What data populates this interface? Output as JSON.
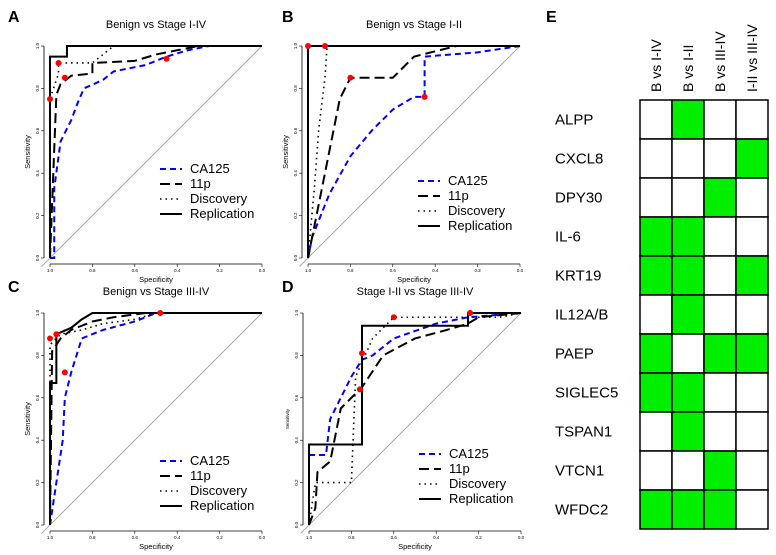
{
  "chart_data": [
    {
      "type": "line",
      "panel": "A",
      "title": "Benign vs Stage I-IV",
      "xlabel": "Specificity",
      "ylabel": "Sensitivity",
      "xlim": [
        1.0,
        0.0
      ],
      "ylim": [
        0.0,
        1.0
      ],
      "ticks": [
        "1.0",
        "0.8",
        "0.6",
        "0.4",
        "0.2",
        "0.0"
      ],
      "series": [
        {
          "name": "CA125",
          "style": "dashed",
          "color": "#0000ff",
          "points": [
            [
              1,
              0
            ],
            [
              0.98,
              0
            ],
            [
              0.98,
              0.33
            ],
            [
              0.95,
              0.55
            ],
            [
              0.9,
              0.65
            ],
            [
              0.87,
              0.73
            ],
            [
              0.84,
              0.8
            ],
            [
              0.75,
              0.84
            ],
            [
              0.7,
              0.88
            ],
            [
              0.55,
              0.91
            ],
            [
              0.45,
              0.95
            ],
            [
              0.35,
              0.98
            ],
            [
              0.25,
              1
            ],
            [
              0,
              1
            ]
          ]
        },
        {
          "name": "11p",
          "style": "longdash",
          "color": "#000000",
          "points": [
            [
              1,
              0
            ],
            [
              0.97,
              0.77
            ],
            [
              0.95,
              0.82
            ],
            [
              0.9,
              0.86
            ],
            [
              0.8,
              0.87
            ],
            [
              0.8,
              0.92
            ],
            [
              0.6,
              0.93
            ],
            [
              0.5,
              0.96
            ],
            [
              0.4,
              0.98
            ],
            [
              0.3,
              1
            ],
            [
              0,
              1
            ]
          ]
        },
        {
          "name": "Discovery",
          "style": "dotted",
          "color": "#000000",
          "points": [
            [
              1,
              0
            ],
            [
              1,
              0.75
            ],
            [
              0.96,
              0.87
            ],
            [
              0.96,
              0.92
            ],
            [
              0.8,
              0.92
            ],
            [
              0.7,
              1
            ],
            [
              0,
              1
            ]
          ]
        },
        {
          "name": "Replication",
          "style": "solid",
          "color": "#000000",
          "points": [
            [
              1,
              0
            ],
            [
              1,
              0.95
            ],
            [
              0.92,
              0.95
            ],
            [
              0.92,
              1
            ],
            [
              0,
              1
            ]
          ]
        }
      ],
      "highlight_points": [
        [
          1,
          0.75
        ],
        [
          0.96,
          0.92
        ],
        [
          0.93,
          0.85
        ],
        [
          0.45,
          0.94
        ]
      ]
    },
    {
      "type": "line",
      "panel": "B",
      "title": "Benign vs Stage I-II",
      "xlabel": "Specificity",
      "ylabel": "Sensitivity",
      "xlim": [
        1.0,
        0.0
      ],
      "ylim": [
        0.0,
        1.0
      ],
      "ticks": [
        "1.0",
        "0.8",
        "0.6",
        "0.4",
        "0.2",
        "0.0"
      ],
      "series": [
        {
          "name": "CA125",
          "style": "dashed",
          "color": "#0000ff",
          "points": [
            [
              1,
              0
            ],
            [
              0.98,
              0.1
            ],
            [
              0.9,
              0.3
            ],
            [
              0.8,
              0.48
            ],
            [
              0.7,
              0.6
            ],
            [
              0.6,
              0.7
            ],
            [
              0.5,
              0.76
            ],
            [
              0.45,
              0.76
            ],
            [
              0.45,
              0.95
            ],
            [
              0.2,
              0.97
            ],
            [
              0,
              1
            ]
          ]
        },
        {
          "name": "11p",
          "style": "longdash",
          "color": "#000000",
          "points": [
            [
              1,
              0
            ],
            [
              0.9,
              0.5
            ],
            [
              0.85,
              0.75
            ],
            [
              0.8,
              0.85
            ],
            [
              0.6,
              0.85
            ],
            [
              0.5,
              0.95
            ],
            [
              0.3,
              1
            ],
            [
              0,
              1
            ]
          ]
        },
        {
          "name": "Discovery",
          "style": "dotted",
          "color": "#000000",
          "points": [
            [
              1,
              0
            ],
            [
              0.97,
              0.33
            ],
            [
              0.95,
              0.6
            ],
            [
              0.92,
              0.85
            ],
            [
              0.91,
              1
            ],
            [
              0,
              1
            ]
          ]
        },
        {
          "name": "Replication",
          "style": "solid",
          "color": "#000000",
          "points": [
            [
              1,
              0
            ],
            [
              1,
              1
            ],
            [
              0,
              1
            ]
          ]
        }
      ],
      "highlight_points": [
        [
          1,
          1
        ],
        [
          0.92,
          1
        ],
        [
          0.8,
          0.85
        ],
        [
          0.45,
          0.76
        ]
      ]
    },
    {
      "type": "line",
      "panel": "C",
      "title": "Benign vs Stage III-IV",
      "xlabel": "Specificity",
      "ylabel": "Sensitivity",
      "xlim": [
        1.0,
        0.0
      ],
      "ylim": [
        0.0,
        1.0
      ],
      "ticks": [
        "1.0",
        "0.8",
        "0.6",
        "0.4",
        "0.2",
        "0.0"
      ],
      "series": [
        {
          "name": "CA125",
          "style": "dashed",
          "color": "#0000ff",
          "points": [
            [
              1,
              0
            ],
            [
              0.94,
              0.4
            ],
            [
              0.93,
              0.6
            ],
            [
              0.9,
              0.72
            ],
            [
              0.85,
              0.88
            ],
            [
              0.75,
              0.92
            ],
            [
              0.6,
              0.96
            ],
            [
              0.5,
              1
            ],
            [
              0,
              1
            ]
          ]
        },
        {
          "name": "11p",
          "style": "longdash",
          "color": "#000000",
          "points": [
            [
              1,
              0
            ],
            [
              0.99,
              0.82
            ],
            [
              0.95,
              0.88
            ],
            [
              0.9,
              0.92
            ],
            [
              0.8,
              0.96
            ],
            [
              0.7,
              0.98
            ],
            [
              0.55,
              1
            ],
            [
              0,
              1
            ]
          ]
        },
        {
          "name": "Discovery",
          "style": "dotted",
          "color": "#000000",
          "points": [
            [
              1,
              0
            ],
            [
              1,
              0.85
            ],
            [
              0.95,
              0.9
            ],
            [
              0.85,
              0.92
            ],
            [
              0.75,
              0.95
            ],
            [
              0.6,
              0.97
            ],
            [
              0.5,
              1
            ],
            [
              0,
              1
            ]
          ]
        },
        {
          "name": "Replication",
          "style": "solid",
          "color": "#000000",
          "points": [
            [
              1,
              0
            ],
            [
              1,
              0.67
            ],
            [
              0.97,
              0.67
            ],
            [
              0.97,
              0.9
            ],
            [
              0.9,
              0.93
            ],
            [
              0.85,
              0.97
            ],
            [
              0.8,
              1
            ],
            [
              0,
              1
            ]
          ]
        }
      ],
      "highlight_points": [
        [
          1,
          0.88
        ],
        [
          0.97,
          0.9
        ],
        [
          0.93,
          0.72
        ],
        [
          0.48,
          1
        ]
      ]
    },
    {
      "type": "line",
      "panel": "D",
      "title": "Stage I-II vs Stage III-IV",
      "xlabel": "Specificity",
      "ylabel": "Sensitivity",
      "xlim": [
        1.0,
        0.0
      ],
      "ylim": [
        0.0,
        1.0
      ],
      "ticks": [
        "1.0",
        "0.8",
        "0.6",
        "0.4",
        "0.2",
        "0.0"
      ],
      "series": [
        {
          "name": "CA125",
          "style": "dashed",
          "color": "#0000ff",
          "points": [
            [
              1,
              0
            ],
            [
              1,
              0.33
            ],
            [
              0.92,
              0.33
            ],
            [
              0.9,
              0.5
            ],
            [
              0.85,
              0.6
            ],
            [
              0.8,
              0.7
            ],
            [
              0.75,
              0.78
            ],
            [
              0.7,
              0.8
            ],
            [
              0.6,
              0.88
            ],
            [
              0.4,
              0.95
            ],
            [
              0.25,
              0.98
            ],
            [
              0,
              1
            ]
          ]
        },
        {
          "name": "11p",
          "style": "longdash",
          "color": "#000000",
          "points": [
            [
              1,
              0
            ],
            [
              0.97,
              0.08
            ],
            [
              0.96,
              0.25
            ],
            [
              0.9,
              0.3
            ],
            [
              0.85,
              0.55
            ],
            [
              0.75,
              0.65
            ],
            [
              0.65,
              0.8
            ],
            [
              0.5,
              0.88
            ],
            [
              0.35,
              0.92
            ],
            [
              0.25,
              0.95
            ],
            [
              0.2,
              0.98
            ],
            [
              0,
              1
            ]
          ]
        },
        {
          "name": "Discovery",
          "style": "dotted",
          "color": "#000000",
          "points": [
            [
              1,
              0
            ],
            [
              0.97,
              0.2
            ],
            [
              0.8,
              0.2
            ],
            [
              0.78,
              0.7
            ],
            [
              0.7,
              0.88
            ],
            [
              0.6,
              0.98
            ],
            [
              0.1,
              0.98
            ],
            [
              0,
              1
            ]
          ]
        },
        {
          "name": "Replication",
          "style": "solid",
          "color": "#000000",
          "points": [
            [
              1,
              0
            ],
            [
              1,
              0.38
            ],
            [
              0.75,
              0.38
            ],
            [
              0.75,
              0.94
            ],
            [
              0.25,
              0.94
            ],
            [
              0.25,
              1
            ],
            [
              0,
              1
            ]
          ]
        }
      ],
      "highlight_points": [
        [
          0.76,
          0.64
        ],
        [
          0.75,
          0.81
        ],
        [
          0.6,
          0.98
        ],
        [
          0.24,
          1
        ]
      ]
    },
    {
      "type": "heatmap",
      "panel": "E",
      "columns": [
        "B vs I-IV",
        "B vs I-II",
        "B vs III-IV",
        "I-II vs III-IV"
      ],
      "rows": [
        "ALPP",
        "CXCL8",
        "DPY30",
        "IL-6",
        "KRT19",
        "IL12A/B",
        "PAEP",
        "SIGLEC5",
        "TSPAN1",
        "VTCN1",
        "WFDC2"
      ],
      "values": [
        [
          0,
          1,
          0,
          0
        ],
        [
          0,
          0,
          0,
          1
        ],
        [
          0,
          0,
          1,
          0
        ],
        [
          1,
          1,
          0,
          0
        ],
        [
          1,
          1,
          0,
          1
        ],
        [
          0,
          1,
          0,
          0
        ],
        [
          1,
          0,
          1,
          1
        ],
        [
          1,
          1,
          0,
          0
        ],
        [
          0,
          1,
          0,
          0
        ],
        [
          0,
          0,
          1,
          0
        ],
        [
          1,
          1,
          1,
          0
        ]
      ],
      "on_color": "#00ee00",
      "off_color": "#ffffff"
    }
  ],
  "colors": {
    "highlight": "#ff0000",
    "diagonal": "#aaaaaa",
    "ca125": "#0000ff"
  }
}
